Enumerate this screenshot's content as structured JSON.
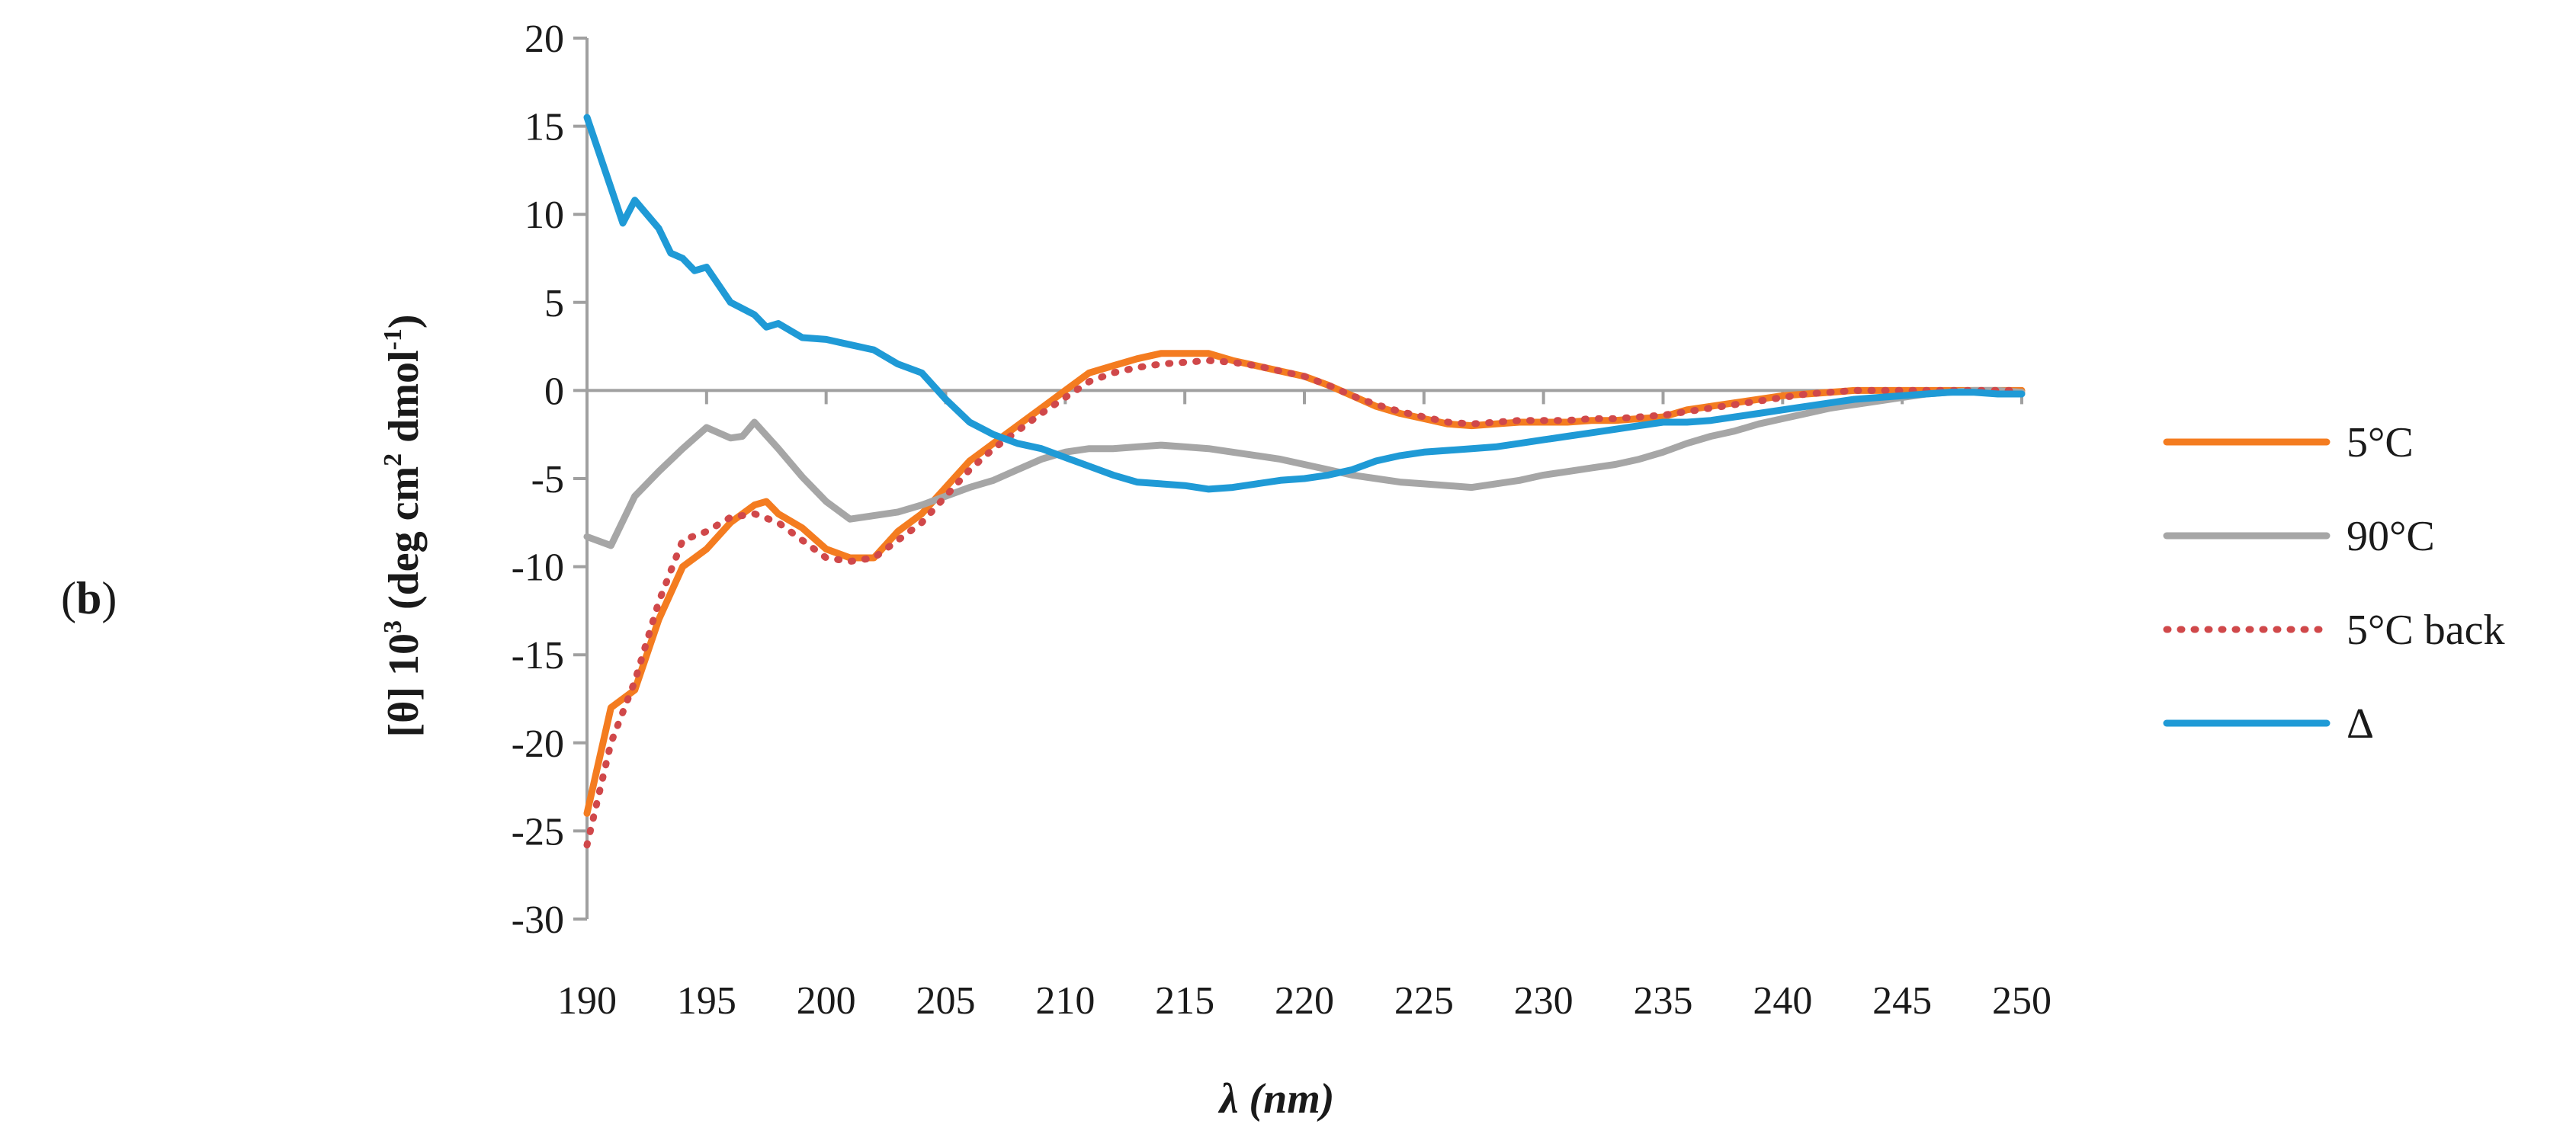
{
  "panel": {
    "open": "(",
    "letter": "b",
    "close": ")"
  },
  "chart_data": {
    "type": "line",
    "title": "",
    "xlabel": "λ (nm)",
    "ylabel_parts": {
      "pre": "[θ] 10",
      "sup1": "3",
      "mid": " (deg cm",
      "sup2": "2",
      "mid2": " dmol",
      "sup3": "-1",
      "post": ")"
    },
    "xlim": [
      190,
      250
    ],
    "ylim": [
      -30,
      20
    ],
    "xticks": [
      190,
      195,
      200,
      205,
      210,
      215,
      220,
      225,
      230,
      235,
      240,
      245,
      250
    ],
    "yticks": [
      20,
      15,
      10,
      5,
      0,
      -5,
      -10,
      -15,
      -20,
      -25,
      -30
    ],
    "grid": false,
    "legend_position": "right",
    "series": [
      {
        "name": "5°C",
        "color": "#F47C20",
        "style": "solid",
        "x": [
          190,
          191,
          192,
          193,
          194,
          195,
          196,
          197,
          197.5,
          198,
          199,
          200,
          201,
          202,
          203,
          204,
          205,
          206,
          207,
          208,
          209,
          210,
          211,
          212,
          213,
          214,
          215,
          216,
          217,
          218,
          219,
          220,
          221,
          222,
          223,
          224,
          225,
          226,
          227,
          228,
          229,
          230,
          231,
          232,
          233,
          234,
          235,
          236,
          237,
          238,
          239,
          240,
          241,
          242,
          243,
          244,
          245,
          246,
          247,
          248,
          249,
          250
        ],
        "values": [
          -24,
          -18,
          -17,
          -13,
          -10,
          -9,
          -7.5,
          -6.5,
          -6.3,
          -7,
          -7.8,
          -9,
          -9.5,
          -9.5,
          -8,
          -7,
          -5.5,
          -4,
          -3,
          -2,
          -1,
          0,
          1,
          1.4,
          1.8,
          2.1,
          2.1,
          2.1,
          1.7,
          1.4,
          1.1,
          0.8,
          0.3,
          -0.3,
          -0.9,
          -1.3,
          -1.6,
          -1.9,
          -2,
          -1.9,
          -1.8,
          -1.8,
          -1.8,
          -1.7,
          -1.7,
          -1.6,
          -1.5,
          -1.1,
          -0.9,
          -0.7,
          -0.5,
          -0.3,
          -0.2,
          -0.1,
          0,
          0,
          0,
          0,
          0,
          0,
          0,
          0
        ]
      },
      {
        "name": "90°C",
        "color": "#A6A6A6",
        "style": "solid",
        "x": [
          190,
          191,
          192,
          193,
          194,
          195,
          196,
          196.5,
          197,
          198,
          199,
          200,
          201,
          202,
          203,
          204,
          205,
          206,
          207,
          208,
          209,
          210,
          211,
          212,
          213,
          214,
          215,
          216,
          217,
          218,
          219,
          220,
          221,
          222,
          223,
          224,
          225,
          226,
          227,
          228,
          229,
          230,
          231,
          232,
          233,
          234,
          235,
          236,
          237,
          238,
          239,
          240,
          241,
          242,
          243,
          244,
          245,
          246,
          247,
          248,
          249,
          250
        ],
        "values": [
          -8.3,
          -8.8,
          -6,
          -4.6,
          -3.3,
          -2.1,
          -2.7,
          -2.6,
          -1.8,
          -3.3,
          -4.9,
          -6.3,
          -7.3,
          -7.1,
          -6.9,
          -6.5,
          -6,
          -5.5,
          -5.1,
          -4.5,
          -3.9,
          -3.5,
          -3.3,
          -3.3,
          -3.2,
          -3.1,
          -3.2,
          -3.3,
          -3.5,
          -3.7,
          -3.9,
          -4.2,
          -4.5,
          -4.8,
          -5,
          -5.2,
          -5.3,
          -5.4,
          -5.5,
          -5.3,
          -5.1,
          -4.8,
          -4.6,
          -4.4,
          -4.2,
          -3.9,
          -3.5,
          -3,
          -2.6,
          -2.3,
          -1.9,
          -1.6,
          -1.3,
          -1,
          -0.8,
          -0.6,
          -0.4,
          -0.2,
          -0.1,
          0,
          0,
          -0.1
        ]
      },
      {
        "name": "5°C back",
        "color": "#D0484A",
        "style": "dotted",
        "x": [
          190,
          191,
          192,
          193,
          194,
          195,
          196,
          197,
          198,
          199,
          200,
          201,
          202,
          203,
          204,
          205,
          206,
          207,
          208,
          209,
          210,
          211,
          212,
          213,
          214,
          215,
          216,
          217,
          218,
          219,
          220,
          221,
          222,
          223,
          224,
          225,
          226,
          227,
          228,
          229,
          230,
          231,
          232,
          233,
          234,
          235,
          236,
          237,
          238,
          239,
          240,
          241,
          242,
          243,
          244,
          245,
          246,
          247,
          248,
          249,
          250
        ],
        "values": [
          -25.8,
          -20,
          -16.5,
          -12,
          -8.5,
          -8,
          -7.2,
          -7,
          -7.5,
          -8.5,
          -9.5,
          -9.7,
          -9.5,
          -8.5,
          -7.5,
          -6,
          -4.5,
          -3.3,
          -2.3,
          -1.3,
          -0.4,
          0.5,
          1,
          1.3,
          1.5,
          1.6,
          1.7,
          1.6,
          1.4,
          1.1,
          0.8,
          0.3,
          -0.3,
          -0.8,
          -1.2,
          -1.5,
          -1.8,
          -1.9,
          -1.8,
          -1.7,
          -1.7,
          -1.7,
          -1.6,
          -1.6,
          -1.5,
          -1.4,
          -1.2,
          -1,
          -0.8,
          -0.6,
          -0.4,
          -0.2,
          -0.1,
          0,
          0,
          0,
          0,
          0,
          0,
          0,
          0
        ]
      },
      {
        "name": "Δ",
        "color": "#1F9AD6",
        "style": "solid",
        "x": [
          190,
          191,
          191.5,
          192,
          193,
          193.5,
          194,
          194.5,
          195,
          196,
          197,
          197.5,
          198,
          199,
          200,
          201,
          202,
          203,
          204,
          205,
          206,
          207,
          208,
          209,
          210,
          211,
          212,
          213,
          214,
          215,
          216,
          217,
          218,
          219,
          220,
          221,
          222,
          223,
          224,
          225,
          226,
          227,
          228,
          229,
          230,
          231,
          232,
          233,
          234,
          235,
          236,
          237,
          238,
          239,
          240,
          241,
          242,
          243,
          244,
          245,
          246,
          247,
          248,
          249,
          250
        ],
        "values": [
          15.5,
          11.5,
          9.5,
          10.8,
          9.2,
          7.8,
          7.5,
          6.8,
          7,
          5,
          4.3,
          3.6,
          3.8,
          3,
          2.9,
          2.6,
          2.3,
          1.5,
          1,
          -0.5,
          -1.8,
          -2.5,
          -3,
          -3.3,
          -3.8,
          -4.3,
          -4.8,
          -5.2,
          -5.3,
          -5.4,
          -5.6,
          -5.5,
          -5.3,
          -5.1,
          -5,
          -4.8,
          -4.5,
          -4,
          -3.7,
          -3.5,
          -3.4,
          -3.3,
          -3.2,
          -3,
          -2.8,
          -2.6,
          -2.4,
          -2.2,
          -2,
          -1.8,
          -1.8,
          -1.7,
          -1.5,
          -1.3,
          -1.1,
          -0.9,
          -0.7,
          -0.5,
          -0.4,
          -0.3,
          -0.2,
          -0.1,
          -0.1,
          -0.2,
          -0.2
        ]
      }
    ]
  }
}
